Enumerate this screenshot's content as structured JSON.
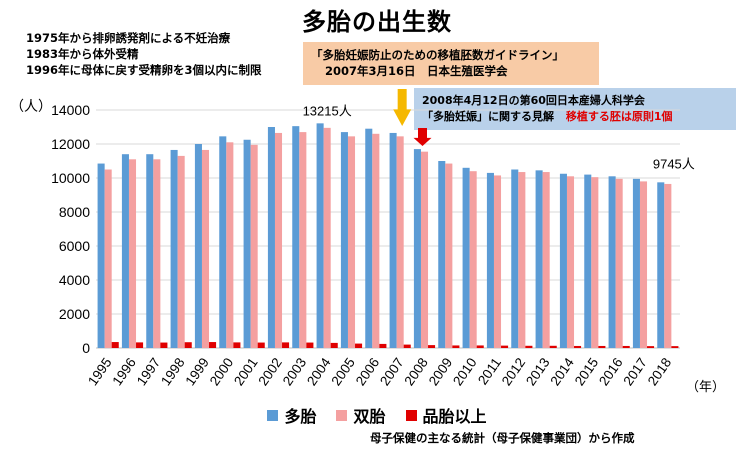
{
  "title": "多胎の出生数",
  "notes": [
    "1975年から排卵誘発剤による不妊治療",
    "1983年から体外受精",
    "1996年に母体に戻す受精卵を3個以内に制限"
  ],
  "box_orange": {
    "line1": "「多胎妊娠防止のための移植胚数ガイドライン」",
    "line2": "2007年3月16日　日本生殖医学会"
  },
  "box_blue": {
    "line1": "2008年4月12日の第60回日本産婦人科学会",
    "line2": "「多胎妊娠」に関する見解",
    "line2_red": "移植する胚は原則1個"
  },
  "unit_y": "（人）",
  "unit_x": "（年）",
  "credit": "母子保健の主なる統計（母子保健事業団）から作成",
  "colors": {
    "twins_multi": "#5b9bd5",
    "twins": "#f4a0a0",
    "triplets": "#e00000",
    "arrow_orange": "#f5b800",
    "arrow_red": "#e00000"
  },
  "chart_data": {
    "type": "bar",
    "categories": [
      "1995",
      "1996",
      "1997",
      "1998",
      "1999",
      "2000",
      "2001",
      "2002",
      "2003",
      "2004",
      "2005",
      "2006",
      "2007",
      "2008",
      "2009",
      "2010",
      "2011",
      "2012",
      "2013",
      "2014",
      "2015",
      "2016",
      "2017",
      "2018"
    ],
    "series": [
      {
        "name": "多胎",
        "values": [
          10850,
          11400,
          11400,
          11650,
          12000,
          12450,
          12250,
          13000,
          13050,
          13215,
          12700,
          12900,
          12650,
          11700,
          11000,
          10600,
          10300,
          10500,
          10450,
          10250,
          10200,
          10100,
          9950,
          9745
        ]
      },
      {
        "name": "双胎",
        "values": [
          10500,
          11100,
          11100,
          11300,
          11650,
          12100,
          11950,
          12650,
          12700,
          12950,
          12450,
          12600,
          12450,
          11550,
          10850,
          10400,
          10150,
          10350,
          10350,
          10100,
          10050,
          9950,
          9800,
          9650
        ]
      },
      {
        "name": "品胎以上",
        "values": [
          350,
          330,
          320,
          340,
          350,
          330,
          320,
          330,
          320,
          300,
          260,
          240,
          200,
          170,
          150,
          150,
          140,
          130,
          130,
          120,
          120,
          120,
          110,
          110
        ]
      }
    ],
    "yticks": [
      "0",
      "2000",
      "4000",
      "6000",
      "8000",
      "10000",
      "12000",
      "14000"
    ],
    "ylim": [
      0,
      14000
    ],
    "annotations": {
      "peak_label": "13215人",
      "last_label": "9745人"
    },
    "legend": [
      {
        "name": "多胎"
      },
      {
        "name": "双胎"
      },
      {
        "name": "品胎以上"
      }
    ]
  }
}
